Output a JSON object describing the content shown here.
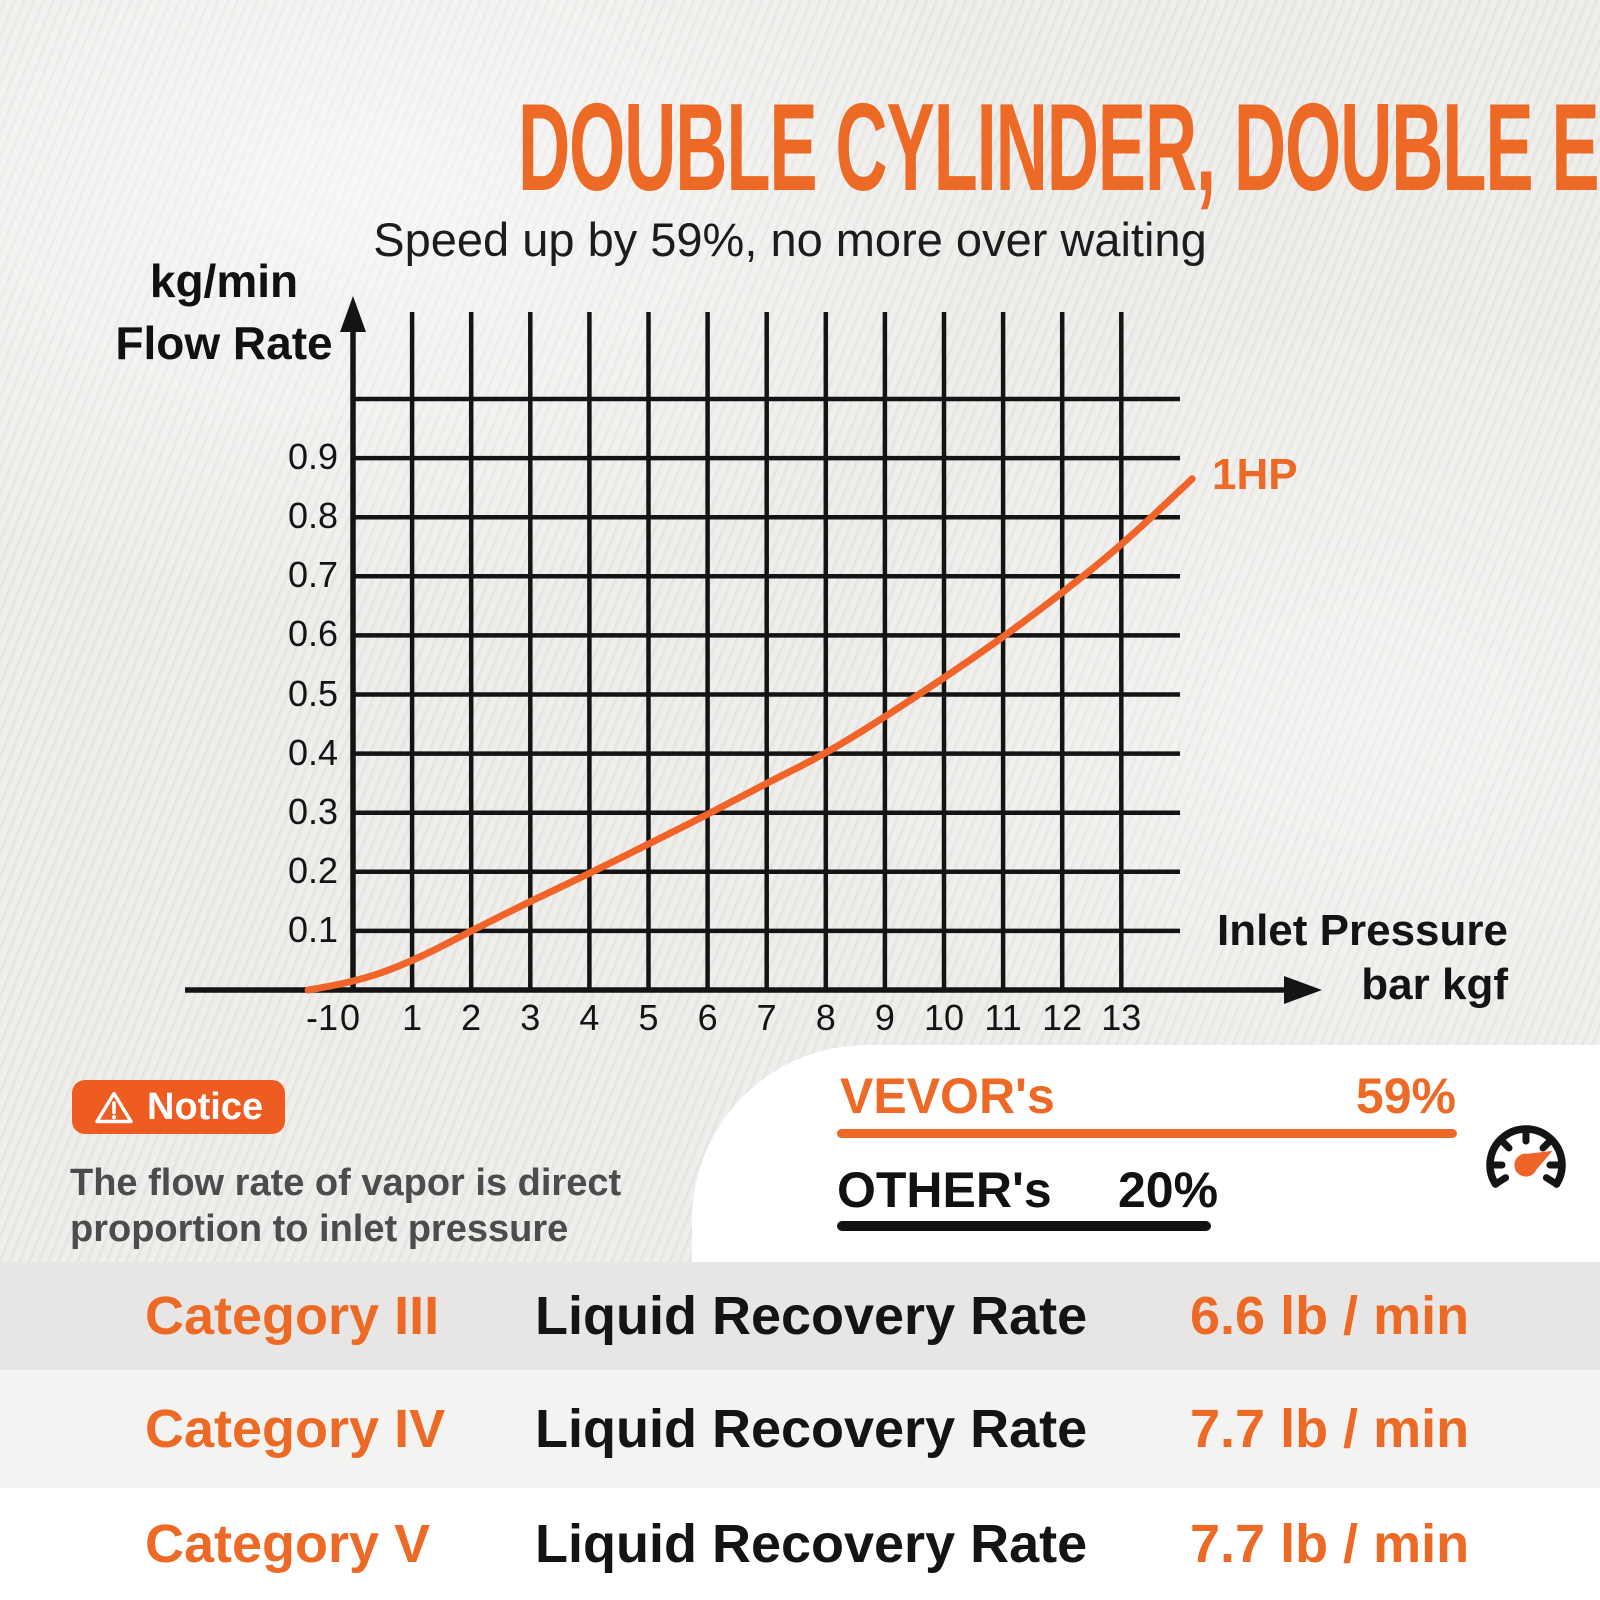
{
  "header": {
    "title": "DOUBLE CYLINDER, DOUBLE EFFICIENCY",
    "subtitle": "Speed up by 59%, no more over waiting"
  },
  "chart_data": {
    "type": "line",
    "title": "",
    "grid": true,
    "x_axis": {
      "title_line1": "Inlet Pressure",
      "title_line2": "bar kgf",
      "ticks": [
        -1,
        0,
        1,
        2,
        3,
        4,
        5,
        6,
        7,
        8,
        9,
        10,
        11,
        12,
        13
      ],
      "gridlines": [
        0,
        1,
        2,
        3,
        4,
        5,
        6,
        7,
        8,
        9,
        10,
        11,
        12,
        13
      ],
      "range": [
        -1.5,
        16.2
      ]
    },
    "y_axis": {
      "unit_line1": "kg/min",
      "unit_line2": "Flow Rate",
      "ticks": [
        0.1,
        0.2,
        0.3,
        0.4,
        0.5,
        0.6,
        0.7,
        0.8,
        0.9
      ],
      "gridlines": [
        0.1,
        0.2,
        0.3,
        0.4,
        0.5,
        0.6,
        0.7,
        0.8,
        0.9,
        1.0
      ],
      "range": [
        0,
        1.15
      ]
    },
    "series": [
      {
        "name": "1HP",
        "color": "#F0642A",
        "points": [
          [
            -0.76,
            0
          ],
          [
            0,
            0.012
          ],
          [
            1,
            0.048
          ],
          [
            2,
            0.1
          ],
          [
            3,
            0.15
          ],
          [
            4,
            0.197
          ],
          [
            5,
            0.247
          ],
          [
            6,
            0.297
          ],
          [
            7,
            0.35
          ],
          [
            8,
            0.4
          ],
          [
            9,
            0.462
          ],
          [
            10,
            0.528
          ],
          [
            11,
            0.597
          ],
          [
            12,
            0.672
          ],
          [
            13,
            0.752
          ],
          [
            14.2,
            0.865
          ]
        ]
      }
    ]
  },
  "notice": {
    "badge_label": "Notice",
    "warning_icon": "warning-triangle-icon",
    "text_line1": "The flow rate of vapor is direct",
    "text_line2": "proportion to inlet pressure"
  },
  "comparison": {
    "vevor_label": "VEVOR's",
    "vevor_value": "59%",
    "other_label": "OTHER's",
    "other_value": "20%",
    "gauge_icon": "speedometer-icon"
  },
  "rows": [
    {
      "category": "Category III",
      "label": "Liquid Recovery Rate",
      "value": "6.6 lb / min"
    },
    {
      "category": "Category IV",
      "label": "Liquid Recovery Rate",
      "value": "7.7 lb / min"
    },
    {
      "category": "Category V",
      "label": "Liquid Recovery Rate",
      "value": "7.7 lb / min"
    }
  ],
  "colors": {
    "accent": "#ED6A26",
    "badge_orange": "#EE5C22",
    "curve_orange": "#F0642A",
    "ink": "#141414",
    "notice_text": "#4C4C4C",
    "row1_bg": "#E7E6E4",
    "row2_bg": "#F3F3F2",
    "row3_bg": "#FFFFFF",
    "panel_bg": "#FFFFFF",
    "page_bg": "#ECEBE8"
  }
}
